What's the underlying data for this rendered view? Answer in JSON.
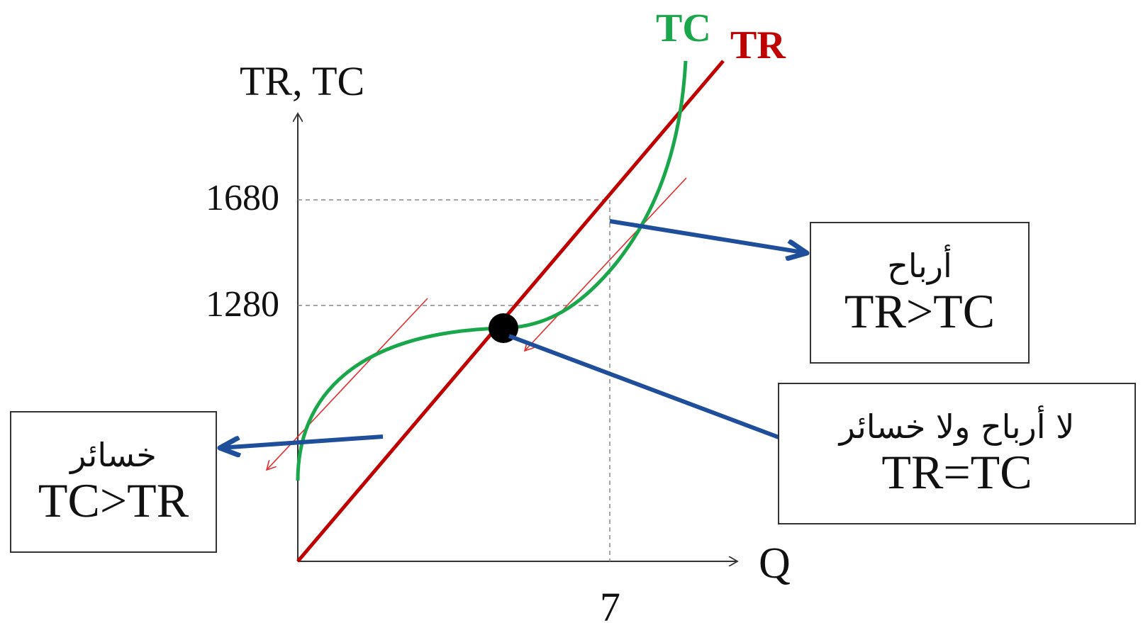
{
  "axes": {
    "y_label": "TR, TC",
    "x_label": "Q",
    "y_ticks": [
      "1680",
      "1280"
    ],
    "x_ticks": [
      "7"
    ]
  },
  "curves": {
    "tc_label": "TC",
    "tr_label": "TR",
    "tc_color": "#1aa64a",
    "tr_color": "#c00000"
  },
  "boxes": {
    "profit": {
      "arabic": "أرباح",
      "condition": "TR>TC"
    },
    "breakeven": {
      "arabic": "لا أرباح ولا خسائر",
      "condition": "TR=TC"
    },
    "loss": {
      "arabic": "خسائر",
      "condition": "TC>TR"
    }
  },
  "colors": {
    "arrow": "#1f4e9a",
    "axis": "#333333"
  }
}
